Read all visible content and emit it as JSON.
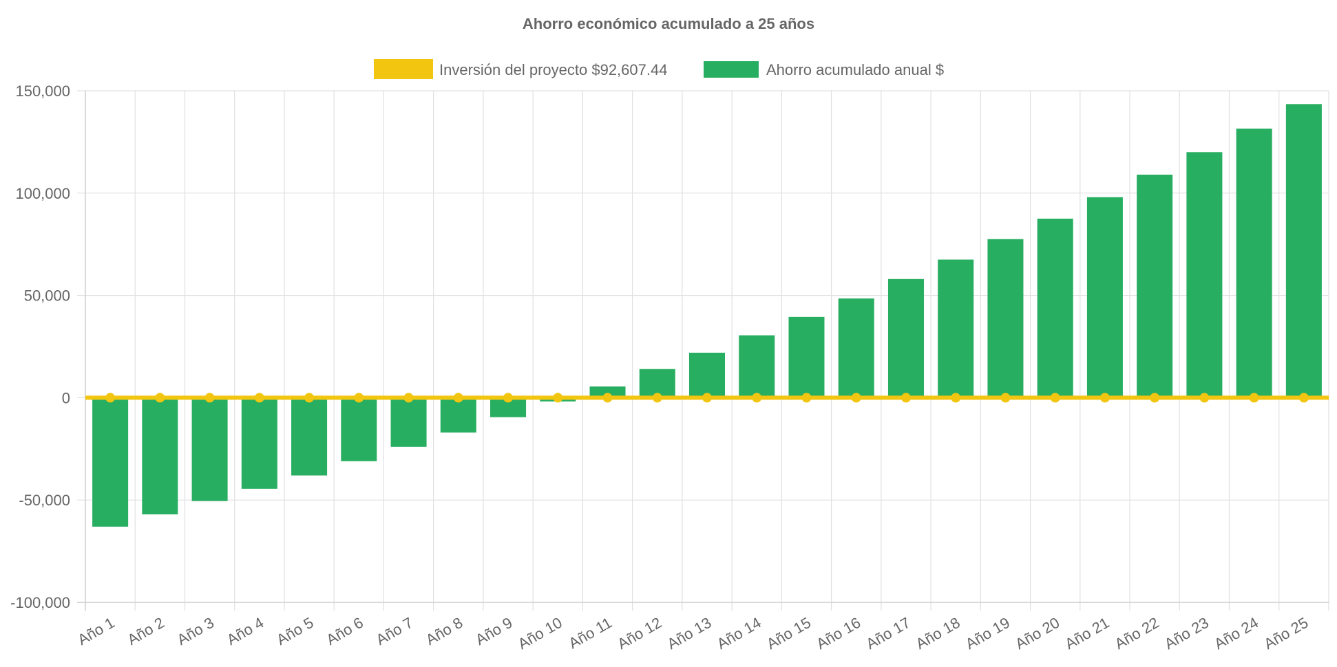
{
  "chart_data": {
    "type": "bar",
    "title": "Ahorro económico acumulado a 25 años",
    "xlabel": "",
    "ylabel": "",
    "categories": [
      "Año 1",
      "Año 2",
      "Año 3",
      "Año 4",
      "Año 5",
      "Año 6",
      "Año 7",
      "Año 8",
      "Año 9",
      "Año 10",
      "Año 11",
      "Año 12",
      "Año 13",
      "Año 14",
      "Año 15",
      "Año 16",
      "Año 17",
      "Año 18",
      "Año 19",
      "Año 20",
      "Año 21",
      "Año 22",
      "Año 23",
      "Año 24",
      "Año 25"
    ],
    "series": [
      {
        "name": "Inversión del proyecto $92,607.44",
        "type": "line",
        "color": "#f2c511",
        "values": [
          0,
          0,
          0,
          0,
          0,
          0,
          0,
          0,
          0,
          0,
          0,
          0,
          0,
          0,
          0,
          0,
          0,
          0,
          0,
          0,
          0,
          0,
          0,
          0,
          0
        ]
      },
      {
        "name": "Ahorro acumulado anual $",
        "type": "bar",
        "color": "#27ae60",
        "values": [
          -63000,
          -57000,
          -50500,
          -44500,
          -38000,
          -31000,
          -24000,
          -17000,
          -9500,
          -1800,
          5500,
          14000,
          22000,
          30500,
          39500,
          48500,
          58000,
          67500,
          77500,
          87500,
          98000,
          109000,
          120000,
          131500,
          143500
        ]
      }
    ],
    "yticks": [
      "150,000",
      "100,000",
      "50,000",
      "0",
      "-50,000",
      "-100,000"
    ],
    "ylim": [
      -100000,
      150000
    ],
    "grid": true,
    "legend_position": "top-center"
  }
}
